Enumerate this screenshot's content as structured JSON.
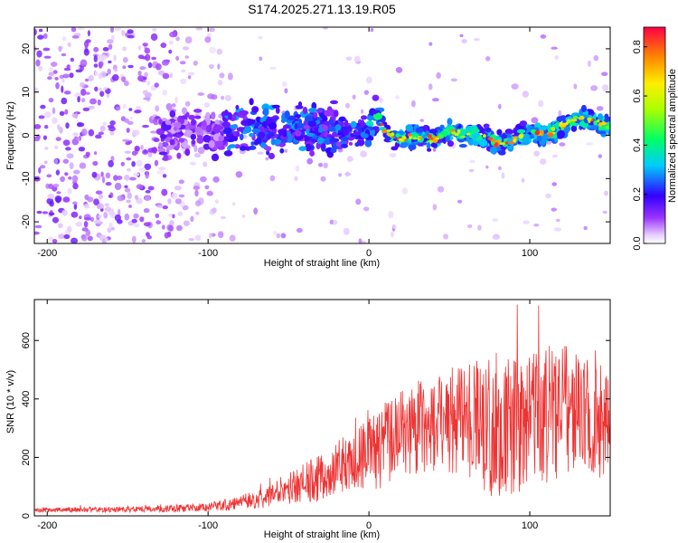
{
  "chart_data": [
    {
      "type": "heatmap",
      "title": "S174.2025.271.13.19.R05",
      "xlabel": "Height of straight line (km)",
      "ylabel": "Frequency (Hz)",
      "xlim": [
        -208,
        150
      ],
      "ylim": [
        -25,
        25
      ],
      "xticks": [
        -200,
        -100,
        0,
        100
      ],
      "yticks": [
        -20,
        -10,
        0,
        10,
        20
      ],
      "colorbar": {
        "label": "Normalized spectral amplitude",
        "range": [
          0,
          0.88
        ],
        "ticks": [
          0.0,
          0.2,
          0.4,
          0.6,
          0.8
        ]
      },
      "ridge": {
        "description": "signal track frequency vs height",
        "x": [
          -100,
          -80,
          -60,
          -40,
          -20,
          0,
          5,
          10,
          20,
          30,
          40,
          50,
          60,
          70,
          80,
          90,
          100,
          110,
          120,
          130,
          140,
          150
        ],
        "y": [
          1,
          2,
          1,
          2,
          1,
          1,
          5,
          1,
          -1,
          0,
          -1,
          1,
          0,
          0,
          -2,
          -1,
          1,
          0,
          2,
          4,
          3,
          2
        ]
      }
    },
    {
      "type": "line",
      "title": "",
      "xlabel": "Height of straight line (km)",
      "ylabel": "SNR (10 * v/v)",
      "xlim": [
        -208,
        150
      ],
      "ylim": [
        0,
        740
      ],
      "xticks": [
        -200,
        -100,
        0,
        100
      ],
      "yticks": [
        0,
        200,
        400,
        600
      ],
      "color": "#ee3333",
      "envelope": {
        "x": [
          -208,
          -150,
          -120,
          -100,
          -80,
          -60,
          -40,
          -20,
          0,
          20,
          40,
          60,
          80,
          100,
          120,
          140,
          150
        ],
        "mean": [
          20,
          22,
          25,
          30,
          45,
          70,
          110,
          160,
          200,
          280,
          320,
          330,
          300,
          330,
          360,
          320,
          330
        ],
        "amp": [
          8,
          10,
          12,
          15,
          25,
          40,
          70,
          100,
          130,
          150,
          170,
          200,
          260,
          240,
          230,
          200,
          180
        ]
      }
    }
  ]
}
